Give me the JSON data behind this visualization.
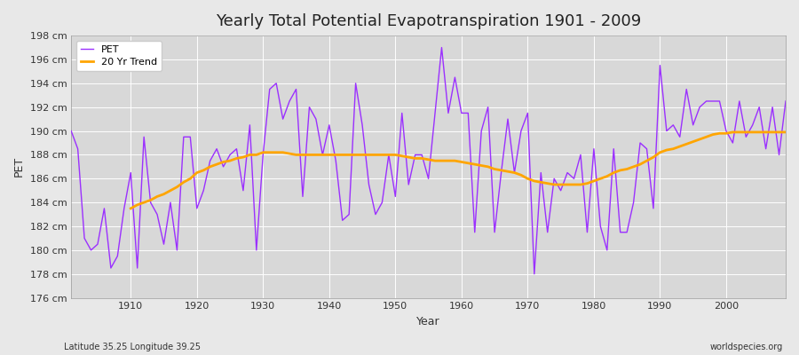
{
  "title": "Yearly Total Potential Evapotranspiration 1901 - 2009",
  "xlabel": "Year",
  "ylabel": "PET",
  "subtitle_left": "Latitude 35.25 Longitude 39.25",
  "subtitle_right": "worldspecies.org",
  "years": [
    1901,
    1902,
    1903,
    1904,
    1905,
    1906,
    1907,
    1908,
    1909,
    1910,
    1911,
    1912,
    1913,
    1914,
    1915,
    1916,
    1917,
    1918,
    1919,
    1920,
    1921,
    1922,
    1923,
    1924,
    1925,
    1926,
    1927,
    1928,
    1929,
    1930,
    1931,
    1932,
    1933,
    1934,
    1935,
    1936,
    1937,
    1938,
    1939,
    1940,
    1941,
    1942,
    1943,
    1944,
    1945,
    1946,
    1947,
    1948,
    1949,
    1950,
    1951,
    1952,
    1953,
    1954,
    1955,
    1956,
    1957,
    1958,
    1959,
    1960,
    1961,
    1962,
    1963,
    1964,
    1965,
    1966,
    1967,
    1968,
    1969,
    1970,
    1971,
    1972,
    1973,
    1974,
    1975,
    1976,
    1977,
    1978,
    1979,
    1980,
    1981,
    1982,
    1983,
    1984,
    1985,
    1986,
    1987,
    1988,
    1989,
    1990,
    1991,
    1992,
    1993,
    1994,
    1995,
    1996,
    1997,
    1998,
    1999,
    2000,
    2001,
    2002,
    2003,
    2004,
    2005,
    2006,
    2007,
    2008,
    2009
  ],
  "pet": [
    190.0,
    188.5,
    181.0,
    180.0,
    180.5,
    183.5,
    178.5,
    179.5,
    183.5,
    186.5,
    178.5,
    189.5,
    184.0,
    183.0,
    180.5,
    184.0,
    180.0,
    189.5,
    189.5,
    183.5,
    185.0,
    187.5,
    188.5,
    187.0,
    188.0,
    188.5,
    185.0,
    190.5,
    180.0,
    188.0,
    193.5,
    194.0,
    191.0,
    192.5,
    193.5,
    184.5,
    192.0,
    191.0,
    188.0,
    190.5,
    187.5,
    182.5,
    183.0,
    194.0,
    190.5,
    185.5,
    183.0,
    184.0,
    188.0,
    184.5,
    191.5,
    185.5,
    188.0,
    188.0,
    186.0,
    191.5,
    197.0,
    191.5,
    194.5,
    191.5,
    191.5,
    181.5,
    190.0,
    192.0,
    181.5,
    186.5,
    191.0,
    186.5,
    190.0,
    191.5,
    178.0,
    186.5,
    181.5,
    186.0,
    185.0,
    186.5,
    186.0,
    188.0,
    181.5,
    188.5,
    182.0,
    180.0,
    188.5,
    181.5,
    181.5,
    184.0,
    189.0,
    188.5,
    183.5,
    195.5,
    190.0,
    190.5,
    189.5,
    193.5,
    190.5,
    192.0,
    192.5,
    192.5,
    192.5,
    190.0,
    189.0,
    192.5,
    189.5,
    190.5,
    192.0,
    188.5,
    192.0,
    188.0,
    192.5
  ],
  "trend_years": [
    1910,
    1911,
    1912,
    1913,
    1914,
    1915,
    1916,
    1917,
    1918,
    1919,
    1920,
    1921,
    1922,
    1923,
    1924,
    1925,
    1926,
    1927,
    1928,
    1929,
    1930,
    1931,
    1932,
    1933,
    1934,
    1935,
    1936,
    1937,
    1938,
    1939,
    1940,
    1941,
    1942,
    1943,
    1944,
    1945,
    1946,
    1947,
    1948,
    1949,
    1950,
    1951,
    1952,
    1953,
    1954,
    1955,
    1956,
    1957,
    1958,
    1959,
    1960,
    1961,
    1962,
    1963,
    1964,
    1965,
    1966,
    1967,
    1968,
    1969,
    1970,
    1971,
    1972,
    1973,
    1974,
    1975,
    1976,
    1977,
    1978,
    1979,
    1980,
    1981,
    1982,
    1983,
    1984,
    1985,
    1986,
    1987,
    1988,
    1989,
    1990,
    1991,
    1992,
    1993,
    1994,
    1995,
    1996,
    1997,
    1998,
    1999,
    2000,
    2001,
    2002,
    2003,
    2004,
    2005,
    2006,
    2007,
    2008,
    2009
  ],
  "trend": [
    183.5,
    183.8,
    184.0,
    184.2,
    184.5,
    184.7,
    185.0,
    185.3,
    185.7,
    186.0,
    186.5,
    186.7,
    187.0,
    187.2,
    187.4,
    187.5,
    187.7,
    187.8,
    188.0,
    188.0,
    188.2,
    188.2,
    188.2,
    188.2,
    188.1,
    188.0,
    188.0,
    188.0,
    188.0,
    188.0,
    188.0,
    188.0,
    188.0,
    188.0,
    188.0,
    188.0,
    188.0,
    188.0,
    188.0,
    188.0,
    188.0,
    187.9,
    187.8,
    187.7,
    187.7,
    187.6,
    187.5,
    187.5,
    187.5,
    187.5,
    187.4,
    187.3,
    187.2,
    187.1,
    187.0,
    186.8,
    186.7,
    186.6,
    186.5,
    186.3,
    186.0,
    185.8,
    185.7,
    185.6,
    185.5,
    185.5,
    185.5,
    185.5,
    185.5,
    185.6,
    185.8,
    186.0,
    186.2,
    186.5,
    186.7,
    186.8,
    187.0,
    187.2,
    187.5,
    187.8,
    188.2,
    188.4,
    188.5,
    188.7,
    188.9,
    189.1,
    189.3,
    189.5,
    189.7,
    189.8,
    189.8,
    189.9,
    189.9,
    189.9,
    189.9,
    189.9,
    189.9,
    189.9,
    189.9,
    189.9
  ],
  "pet_color": "#9B30FF",
  "trend_color": "#FFA500",
  "fig_bg_color": "#e8e8e8",
  "plot_bg_color": "#d8d8d8",
  "grid_color": "#ffffff",
  "ylim": [
    176,
    198
  ],
  "yticks": [
    176,
    178,
    180,
    182,
    184,
    186,
    188,
    190,
    192,
    194,
    196,
    198
  ],
  "xlim": [
    1901,
    2009
  ],
  "xticks": [
    1910,
    1920,
    1930,
    1940,
    1950,
    1960,
    1970,
    1980,
    1990,
    2000
  ],
  "title_fontsize": 13,
  "axis_label_fontsize": 9,
  "tick_fontsize": 8,
  "legend_fontsize": 8,
  "subtitle_fontsize": 7
}
